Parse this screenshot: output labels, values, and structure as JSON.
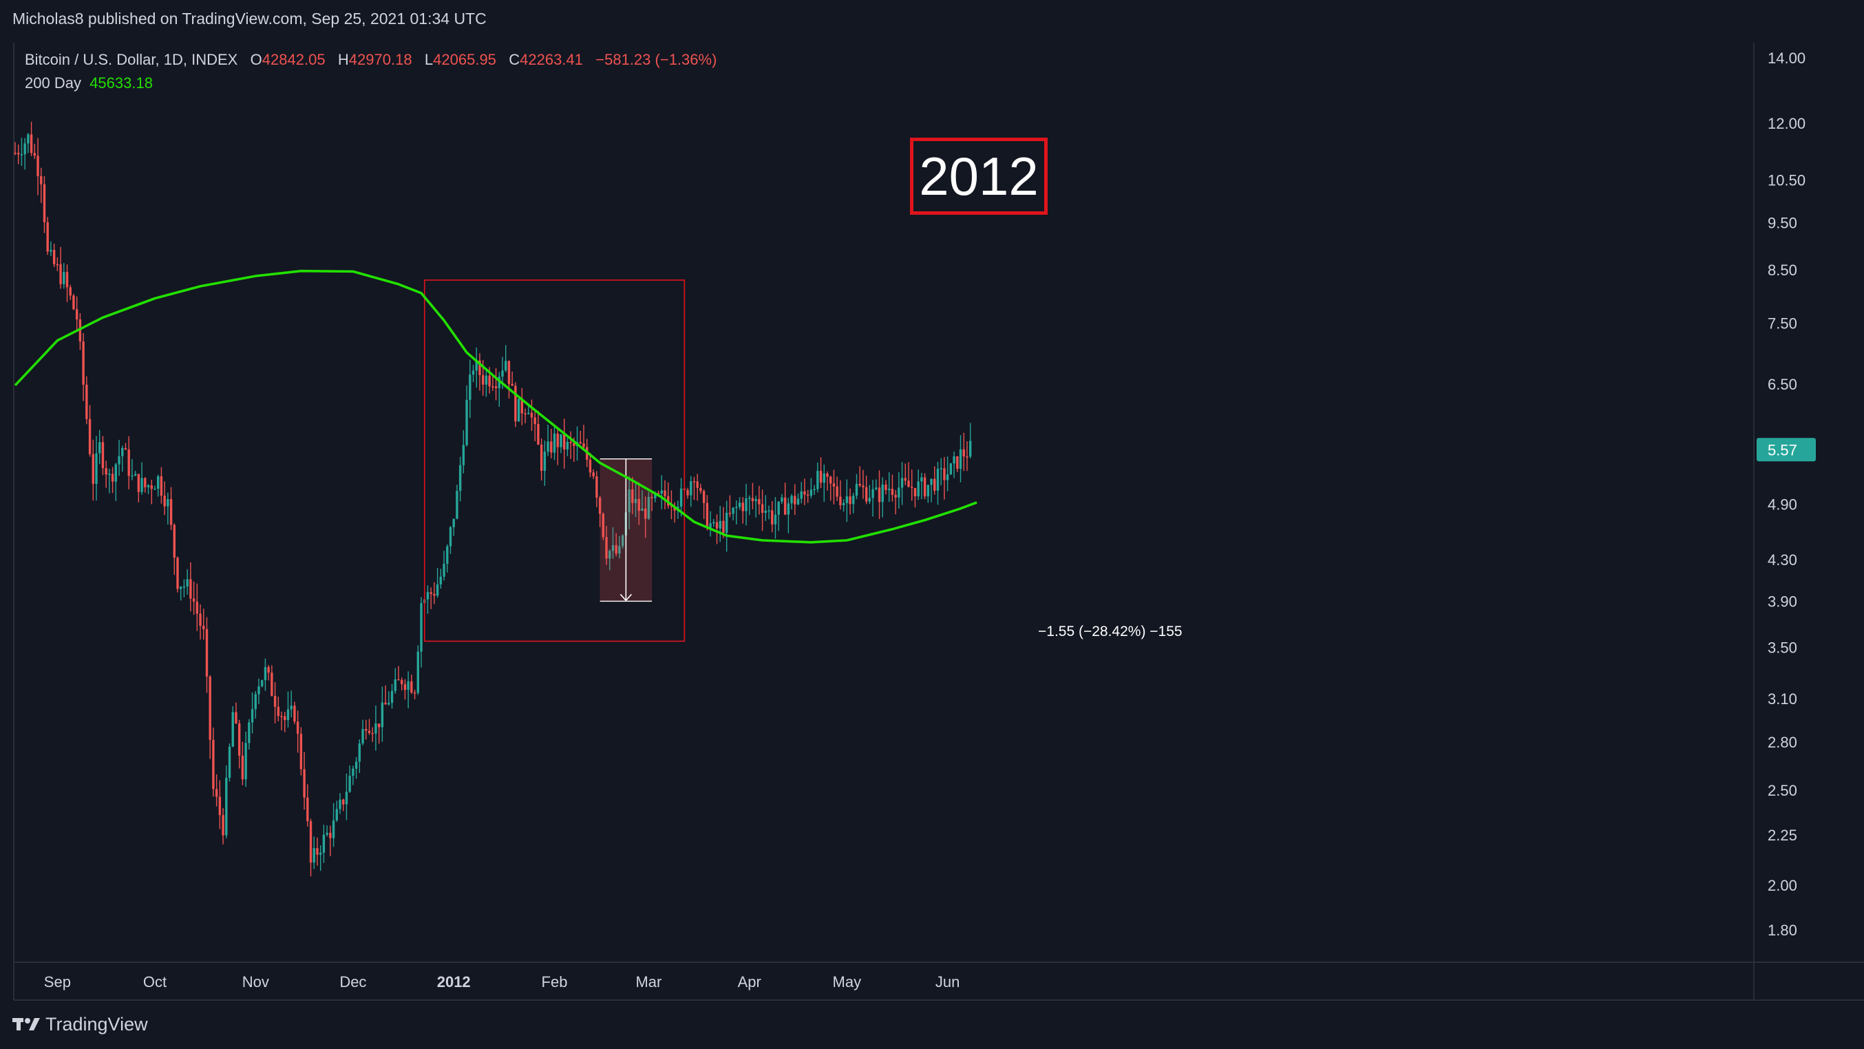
{
  "header": {
    "published": "Micholas8 published on TradingView.com, Sep 25, 2021 01:34 UTC"
  },
  "legend": {
    "symbol": "Bitcoin / U.S. Dollar, 1D, INDEX",
    "o_label": "O",
    "o_value": "42842.05",
    "h_label": "H",
    "h_value": "42970.18",
    "l_label": "L",
    "l_value": "42065.95",
    "c_label": "C",
    "c_value": "42263.41",
    "change": "−581.23 (−1.36%)",
    "ma_label": "200 Day",
    "ma_value": "45633.18"
  },
  "annotation": {
    "year_label": "2012",
    "measure_text": "−1.55 (−28.42%) −155"
  },
  "footer": {
    "brand": "TradingView"
  },
  "colors": {
    "background": "#131722",
    "up": "#26a69a",
    "down": "#ef5350",
    "ma": "#22e000",
    "box": "#e0141c",
    "axis_text": "#d1d4dc",
    "last_price_bg": "#26a69a"
  },
  "chart_data": {
    "type": "candlestick",
    "scale": "log",
    "y_ticks": [
      "14.00",
      "12.00",
      "10.50",
      "9.50",
      "8.50",
      "7.50",
      "6.50",
      "5.57",
      "4.90",
      "4.30",
      "3.90",
      "3.50",
      "3.10",
      "2.80",
      "2.50",
      "2.25",
      "2.00",
      "1.80"
    ],
    "y_tick_values": [
      14.0,
      12.0,
      10.5,
      9.5,
      8.5,
      7.5,
      6.5,
      4.9,
      4.3,
      3.9,
      3.5,
      3.1,
      2.8,
      2.5,
      2.25,
      2.0,
      1.8
    ],
    "last_price": "5.57",
    "x_ticks": [
      {
        "label": "Sep",
        "date": "2011-09-01",
        "bold": false
      },
      {
        "label": "Oct",
        "date": "2011-10-01",
        "bold": false
      },
      {
        "label": "Nov",
        "date": "2011-11-01",
        "bold": false
      },
      {
        "label": "Dec",
        "date": "2011-12-01",
        "bold": false
      },
      {
        "label": "2012",
        "date": "2012-01-01",
        "bold": true
      },
      {
        "label": "Feb",
        "date": "2012-02-01",
        "bold": false
      },
      {
        "label": "Mar",
        "date": "2012-03-01",
        "bold": false
      },
      {
        "label": "Apr",
        "date": "2012-04-01",
        "bold": false
      },
      {
        "label": "May",
        "date": "2012-05-01",
        "bold": false
      },
      {
        "label": "Jun",
        "date": "2012-06-01",
        "bold": false
      }
    ],
    "series": [
      {
        "name": "Bitcoin / U.S. Dollar",
        "kind": "ohlc_close_path",
        "start_date": "2011-08-19",
        "close_anchors": [
          [
            "2011-08-19",
            11.2
          ],
          [
            "2011-08-23",
            11.6
          ],
          [
            "2011-08-27",
            10.6
          ],
          [
            "2011-08-29",
            8.8
          ],
          [
            "2011-09-03",
            8.3
          ],
          [
            "2011-09-07",
            7.6
          ],
          [
            "2011-09-10",
            6.0
          ],
          [
            "2011-09-12",
            5.2
          ],
          [
            "2011-09-14",
            5.6
          ],
          [
            "2011-09-17",
            5.2
          ],
          [
            "2011-09-21",
            5.6
          ],
          [
            "2011-09-24",
            5.2
          ],
          [
            "2011-09-28",
            5.1
          ],
          [
            "2011-10-02",
            5.2
          ],
          [
            "2011-10-05",
            4.9
          ],
          [
            "2011-10-08",
            4.1
          ],
          [
            "2011-10-12",
            4.0
          ],
          [
            "2011-10-16",
            3.6
          ],
          [
            "2011-10-19",
            2.5
          ],
          [
            "2011-10-22",
            2.3
          ],
          [
            "2011-10-25",
            3.0
          ],
          [
            "2011-10-28",
            2.6
          ],
          [
            "2011-11-01",
            3.2
          ],
          [
            "2011-11-04",
            3.3
          ],
          [
            "2011-11-07",
            3.1
          ],
          [
            "2011-11-10",
            2.95
          ],
          [
            "2011-11-13",
            3.0
          ],
          [
            "2011-11-16",
            2.5
          ],
          [
            "2011-11-18",
            2.1
          ],
          [
            "2011-11-21",
            2.2
          ],
          [
            "2011-11-25",
            2.3
          ],
          [
            "2011-11-28",
            2.45
          ],
          [
            "2011-12-02",
            2.7
          ],
          [
            "2011-12-05",
            2.95
          ],
          [
            "2011-12-08",
            2.9
          ],
          [
            "2011-12-12",
            3.1
          ],
          [
            "2011-12-16",
            3.25
          ],
          [
            "2011-12-20",
            3.2
          ],
          [
            "2011-12-22",
            3.9
          ],
          [
            "2011-12-26",
            4.0
          ],
          [
            "2011-12-29",
            4.2
          ],
          [
            "2012-01-02",
            5.0
          ],
          [
            "2012-01-05",
            6.2
          ],
          [
            "2012-01-07",
            6.8
          ],
          [
            "2012-01-10",
            6.6
          ],
          [
            "2012-01-14",
            6.6
          ],
          [
            "2012-01-17",
            6.9
          ],
          [
            "2012-01-20",
            6.1
          ],
          [
            "2012-01-24",
            6.2
          ],
          [
            "2012-01-28",
            5.4
          ],
          [
            "2012-02-01",
            5.7
          ],
          [
            "2012-02-05",
            5.6
          ],
          [
            "2012-02-09",
            5.6
          ],
          [
            "2012-02-13",
            5.3
          ],
          [
            "2012-02-17",
            4.4
          ],
          [
            "2012-02-21",
            4.35
          ],
          [
            "2012-02-24",
            5.0
          ],
          [
            "2012-02-28",
            4.8
          ],
          [
            "2012-03-02",
            4.9
          ],
          [
            "2012-03-06",
            5.0
          ],
          [
            "2012-03-09",
            4.95
          ],
          [
            "2012-03-12",
            5.0
          ],
          [
            "2012-03-15",
            5.3
          ],
          [
            "2012-03-18",
            4.8
          ],
          [
            "2012-03-21",
            4.6
          ],
          [
            "2012-03-25",
            4.7
          ],
          [
            "2012-03-29",
            4.9
          ],
          [
            "2012-04-04",
            4.95
          ],
          [
            "2012-04-08",
            4.75
          ],
          [
            "2012-04-12",
            4.9
          ],
          [
            "2012-04-18",
            5.0
          ],
          [
            "2012-04-21",
            5.2
          ],
          [
            "2012-04-26",
            5.1
          ],
          [
            "2012-04-30",
            4.95
          ],
          [
            "2012-05-04",
            5.1
          ],
          [
            "2012-05-10",
            5.0
          ],
          [
            "2012-05-14",
            5.1
          ],
          [
            "2012-05-20",
            5.1
          ],
          [
            "2012-05-25",
            5.1
          ],
          [
            "2012-05-29",
            5.2
          ],
          [
            "2012-06-02",
            5.3
          ],
          [
            "2012-06-05",
            5.5
          ],
          [
            "2012-06-08",
            5.57
          ]
        ]
      },
      {
        "name": "200 Day",
        "kind": "line",
        "points": [
          [
            "2011-08-19",
            6.48
          ],
          [
            "2011-09-01",
            7.2
          ],
          [
            "2011-09-15",
            7.6
          ],
          [
            "2011-10-01",
            7.95
          ],
          [
            "2011-10-15",
            8.18
          ],
          [
            "2011-11-01",
            8.38
          ],
          [
            "2011-11-15",
            8.48
          ],
          [
            "2011-12-01",
            8.47
          ],
          [
            "2011-12-15",
            8.22
          ],
          [
            "2011-12-22",
            8.05
          ],
          [
            "2011-12-29",
            7.55
          ],
          [
            "2012-01-05",
            7.0
          ],
          [
            "2012-01-15",
            6.55
          ],
          [
            "2012-01-25",
            6.15
          ],
          [
            "2012-02-05",
            5.75
          ],
          [
            "2012-02-15",
            5.4
          ],
          [
            "2012-02-25",
            5.18
          ],
          [
            "2012-03-05",
            4.98
          ],
          [
            "2012-03-15",
            4.7
          ],
          [
            "2012-03-25",
            4.55
          ],
          [
            "2012-04-05",
            4.5
          ],
          [
            "2012-04-20",
            4.48
          ],
          [
            "2012-05-01",
            4.5
          ],
          [
            "2012-05-15",
            4.62
          ],
          [
            "2012-05-25",
            4.72
          ],
          [
            "2012-06-05",
            4.85
          ],
          [
            "2012-06-10",
            4.92
          ]
        ]
      }
    ],
    "annotations": {
      "box": {
        "from": "2011-12-23",
        "to": "2012-03-12",
        "low": 3.55,
        "high": 8.3
      },
      "measure": {
        "from": "2012-02-15",
        "to": "2012-03-02",
        "start": 5.45,
        "end": 3.9,
        "change": "−1.55",
        "percent": "−28.42%",
        "bars": "−155"
      }
    }
  }
}
